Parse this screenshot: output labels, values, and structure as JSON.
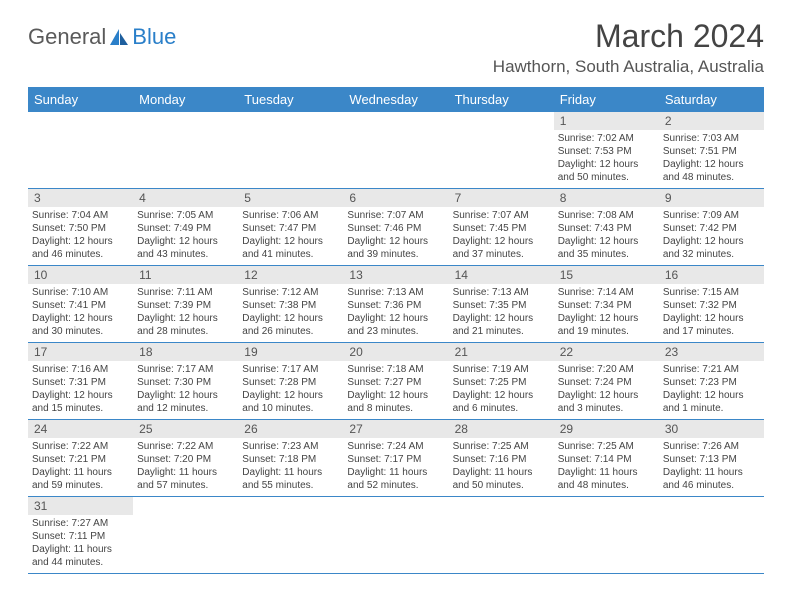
{
  "logo": {
    "text1": "General",
    "text2": "Blue"
  },
  "title": "March 2024",
  "location": "Hawthorn, South Australia, Australia",
  "colors": {
    "header_bg": "#3b87c8",
    "header_text": "#ffffff",
    "daynum_bg": "#e8e8e8",
    "border": "#3b87c8"
  },
  "dayNames": [
    "Sunday",
    "Monday",
    "Tuesday",
    "Wednesday",
    "Thursday",
    "Friday",
    "Saturday"
  ],
  "weeks": [
    [
      null,
      null,
      null,
      null,
      null,
      {
        "n": "1",
        "sr": "Sunrise: 7:02 AM",
        "ss": "Sunset: 7:53 PM",
        "dl": "Daylight: 12 hours and 50 minutes."
      },
      {
        "n": "2",
        "sr": "Sunrise: 7:03 AM",
        "ss": "Sunset: 7:51 PM",
        "dl": "Daylight: 12 hours and 48 minutes."
      }
    ],
    [
      {
        "n": "3",
        "sr": "Sunrise: 7:04 AM",
        "ss": "Sunset: 7:50 PM",
        "dl": "Daylight: 12 hours and 46 minutes."
      },
      {
        "n": "4",
        "sr": "Sunrise: 7:05 AM",
        "ss": "Sunset: 7:49 PM",
        "dl": "Daylight: 12 hours and 43 minutes."
      },
      {
        "n": "5",
        "sr": "Sunrise: 7:06 AM",
        "ss": "Sunset: 7:47 PM",
        "dl": "Daylight: 12 hours and 41 minutes."
      },
      {
        "n": "6",
        "sr": "Sunrise: 7:07 AM",
        "ss": "Sunset: 7:46 PM",
        "dl": "Daylight: 12 hours and 39 minutes."
      },
      {
        "n": "7",
        "sr": "Sunrise: 7:07 AM",
        "ss": "Sunset: 7:45 PM",
        "dl": "Daylight: 12 hours and 37 minutes."
      },
      {
        "n": "8",
        "sr": "Sunrise: 7:08 AM",
        "ss": "Sunset: 7:43 PM",
        "dl": "Daylight: 12 hours and 35 minutes."
      },
      {
        "n": "9",
        "sr": "Sunrise: 7:09 AM",
        "ss": "Sunset: 7:42 PM",
        "dl": "Daylight: 12 hours and 32 minutes."
      }
    ],
    [
      {
        "n": "10",
        "sr": "Sunrise: 7:10 AM",
        "ss": "Sunset: 7:41 PM",
        "dl": "Daylight: 12 hours and 30 minutes."
      },
      {
        "n": "11",
        "sr": "Sunrise: 7:11 AM",
        "ss": "Sunset: 7:39 PM",
        "dl": "Daylight: 12 hours and 28 minutes."
      },
      {
        "n": "12",
        "sr": "Sunrise: 7:12 AM",
        "ss": "Sunset: 7:38 PM",
        "dl": "Daylight: 12 hours and 26 minutes."
      },
      {
        "n": "13",
        "sr": "Sunrise: 7:13 AM",
        "ss": "Sunset: 7:36 PM",
        "dl": "Daylight: 12 hours and 23 minutes."
      },
      {
        "n": "14",
        "sr": "Sunrise: 7:13 AM",
        "ss": "Sunset: 7:35 PM",
        "dl": "Daylight: 12 hours and 21 minutes."
      },
      {
        "n": "15",
        "sr": "Sunrise: 7:14 AM",
        "ss": "Sunset: 7:34 PM",
        "dl": "Daylight: 12 hours and 19 minutes."
      },
      {
        "n": "16",
        "sr": "Sunrise: 7:15 AM",
        "ss": "Sunset: 7:32 PM",
        "dl": "Daylight: 12 hours and 17 minutes."
      }
    ],
    [
      {
        "n": "17",
        "sr": "Sunrise: 7:16 AM",
        "ss": "Sunset: 7:31 PM",
        "dl": "Daylight: 12 hours and 15 minutes."
      },
      {
        "n": "18",
        "sr": "Sunrise: 7:17 AM",
        "ss": "Sunset: 7:30 PM",
        "dl": "Daylight: 12 hours and 12 minutes."
      },
      {
        "n": "19",
        "sr": "Sunrise: 7:17 AM",
        "ss": "Sunset: 7:28 PM",
        "dl": "Daylight: 12 hours and 10 minutes."
      },
      {
        "n": "20",
        "sr": "Sunrise: 7:18 AM",
        "ss": "Sunset: 7:27 PM",
        "dl": "Daylight: 12 hours and 8 minutes."
      },
      {
        "n": "21",
        "sr": "Sunrise: 7:19 AM",
        "ss": "Sunset: 7:25 PM",
        "dl": "Daylight: 12 hours and 6 minutes."
      },
      {
        "n": "22",
        "sr": "Sunrise: 7:20 AM",
        "ss": "Sunset: 7:24 PM",
        "dl": "Daylight: 12 hours and 3 minutes."
      },
      {
        "n": "23",
        "sr": "Sunrise: 7:21 AM",
        "ss": "Sunset: 7:23 PM",
        "dl": "Daylight: 12 hours and 1 minute."
      }
    ],
    [
      {
        "n": "24",
        "sr": "Sunrise: 7:22 AM",
        "ss": "Sunset: 7:21 PM",
        "dl": "Daylight: 11 hours and 59 minutes."
      },
      {
        "n": "25",
        "sr": "Sunrise: 7:22 AM",
        "ss": "Sunset: 7:20 PM",
        "dl": "Daylight: 11 hours and 57 minutes."
      },
      {
        "n": "26",
        "sr": "Sunrise: 7:23 AM",
        "ss": "Sunset: 7:18 PM",
        "dl": "Daylight: 11 hours and 55 minutes."
      },
      {
        "n": "27",
        "sr": "Sunrise: 7:24 AM",
        "ss": "Sunset: 7:17 PM",
        "dl": "Daylight: 11 hours and 52 minutes."
      },
      {
        "n": "28",
        "sr": "Sunrise: 7:25 AM",
        "ss": "Sunset: 7:16 PM",
        "dl": "Daylight: 11 hours and 50 minutes."
      },
      {
        "n": "29",
        "sr": "Sunrise: 7:25 AM",
        "ss": "Sunset: 7:14 PM",
        "dl": "Daylight: 11 hours and 48 minutes."
      },
      {
        "n": "30",
        "sr": "Sunrise: 7:26 AM",
        "ss": "Sunset: 7:13 PM",
        "dl": "Daylight: 11 hours and 46 minutes."
      }
    ],
    [
      {
        "n": "31",
        "sr": "Sunrise: 7:27 AM",
        "ss": "Sunset: 7:11 PM",
        "dl": "Daylight: 11 hours and 44 minutes."
      },
      null,
      null,
      null,
      null,
      null,
      null
    ]
  ]
}
